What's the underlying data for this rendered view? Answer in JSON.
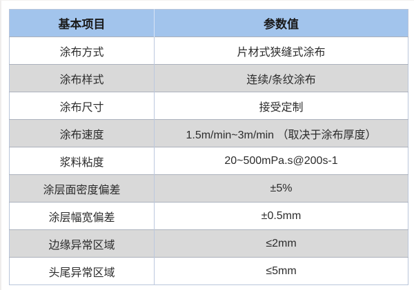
{
  "table": {
    "columns": [
      {
        "label": "基本项目"
      },
      {
        "label": "参数值"
      }
    ],
    "rows": [
      {
        "item": "涂布方式",
        "value": "片材式狭缝式涂布"
      },
      {
        "item": "涂布样式",
        "value": "连续/条纹涂布"
      },
      {
        "item": "涂布尺寸",
        "value": "接受定制"
      },
      {
        "item": "涂布速度",
        "value": "1.5m/min~3m/min （取决于涂布厚度）"
      },
      {
        "item": "浆料粘度",
        "value": "20~500mPa.s@200s-1"
      },
      {
        "item": "涂层面密度偏差",
        "value": "±5%"
      },
      {
        "item": "涂层幅宽偏差",
        "value": "±0.5mm"
      },
      {
        "item": "边缘异常区域",
        "value": "≤2mm"
      },
      {
        "item": "头尾异常区域",
        "value": "≤5mm"
      }
    ],
    "colors": {
      "header_bg": "#a2c4ec",
      "row_bg": "#ffffff",
      "row_alt_bg": "#d9d9d9",
      "border": "#b9c5da",
      "header_text": "#1a1a1a",
      "body_text": "#2b2b2b"
    }
  }
}
